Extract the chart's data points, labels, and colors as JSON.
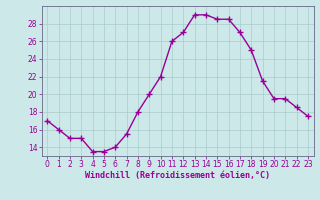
{
  "x": [
    0,
    1,
    2,
    3,
    4,
    5,
    6,
    7,
    8,
    9,
    10,
    11,
    12,
    13,
    14,
    15,
    16,
    17,
    18,
    19,
    20,
    21,
    22,
    23
  ],
  "y": [
    17.0,
    16.0,
    15.0,
    15.0,
    13.5,
    13.5,
    14.0,
    15.5,
    18.0,
    20.0,
    22.0,
    26.0,
    27.0,
    29.0,
    29.0,
    28.5,
    28.5,
    27.0,
    25.0,
    21.5,
    19.5,
    19.5,
    18.5,
    17.5
  ],
  "line_color": "#990099",
  "marker": "+",
  "marker_color": "#990099",
  "bg_color": "#cce8e8",
  "grid_color": "#aacccc",
  "xlabel": "Windchill (Refroidissement éolien,°C)",
  "xlabel_color": "#990099",
  "tick_color": "#990099",
  "spine_color": "#666688",
  "ylim": [
    13,
    30
  ],
  "yticks": [
    14,
    16,
    18,
    20,
    22,
    24,
    26,
    28
  ],
  "xlim": [
    -0.5,
    23.5
  ],
  "xticks": [
    0,
    1,
    2,
    3,
    4,
    5,
    6,
    7,
    8,
    9,
    10,
    11,
    12,
    13,
    14,
    15,
    16,
    17,
    18,
    19,
    20,
    21,
    22,
    23
  ],
  "xtick_labels": [
    "0",
    "1",
    "2",
    "3",
    "4",
    "5",
    "6",
    "7",
    "8",
    "9",
    "10",
    "11",
    "12",
    "13",
    "14",
    "15",
    "16",
    "17",
    "18",
    "19",
    "20",
    "21",
    "22",
    "23"
  ],
  "tick_fontsize": 5.5,
  "xlabel_fontsize": 6.0
}
